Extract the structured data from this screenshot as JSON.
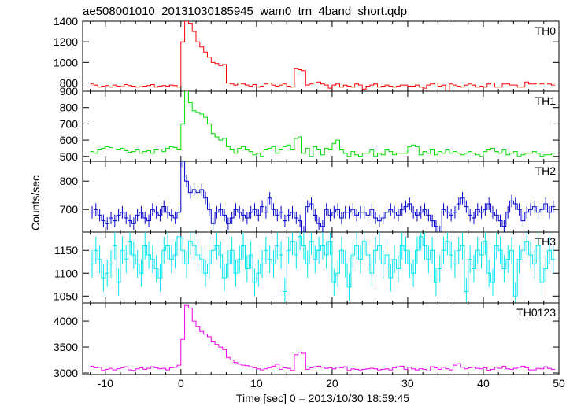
{
  "chart_data": {
    "type": "line",
    "title": "ae508001010_20131030185945_wam0_trn_4band_short.qdp",
    "xlabel": "Time [sec] 0 = 2013/10/30 18:59:45",
    "ylabel": "Counts/sec",
    "xlim": [
      -13,
      50
    ],
    "x_ticks": [
      -10,
      0,
      10,
      20,
      30,
      40,
      50
    ],
    "bin_width": 0.5,
    "x_start": -12.0,
    "series": [
      {
        "name": "TH0",
        "color": "#ff0000",
        "ylim": [
          720,
          1400
        ],
        "y_ticks": [
          800,
          1000,
          1200,
          1400
        ],
        "errorbars": false,
        "values": [
          790,
          780,
          760,
          770,
          775,
          760,
          780,
          770,
          765,
          785,
          775,
          770,
          760,
          765,
          770,
          775,
          785,
          760,
          770,
          775,
          770,
          780,
          775,
          760,
          1200,
          1400,
          1380,
          1300,
          1200,
          1150,
          1100,
          1050,
          1000,
          990,
          970,
          980,
          800,
          790,
          780,
          800,
          790,
          780,
          770,
          785,
          760,
          770,
          790,
          800,
          780,
          770,
          780,
          790,
          770,
          760,
          940,
          930,
          920,
          780,
          790,
          800,
          810,
          790,
          780,
          750,
          780,
          790,
          760,
          780,
          770,
          760,
          790,
          780,
          740,
          770,
          780,
          790,
          760,
          770,
          780,
          770,
          760,
          770,
          780,
          780,
          770,
          770,
          780,
          760,
          750,
          780,
          790,
          800,
          770,
          780,
          720,
          790,
          780,
          770,
          760,
          780,
          790,
          780,
          760,
          770,
          760,
          790,
          800,
          760,
          760,
          790,
          790,
          780,
          780,
          760,
          760,
          810,
          790,
          790,
          800,
          790,
          800,
          790,
          780
        ]
      },
      {
        "name": "TH1",
        "color": "#00dd00",
        "ylim": [
          470,
          900
        ],
        "y_ticks": [
          500,
          600,
          700,
          800,
          900
        ],
        "errorbars": false,
        "values": [
          530,
          520,
          540,
          550,
          560,
          555,
          545,
          540,
          550,
          535,
          525,
          530,
          540,
          520,
          530,
          535,
          520,
          540,
          545,
          530,
          550,
          560,
          555,
          540,
          700,
          900,
          830,
          780,
          770,
          760,
          740,
          700,
          640,
          620,
          600,
          610,
          560,
          540,
          520,
          550,
          560,
          540,
          530,
          510,
          520,
          500,
          540,
          550,
          560,
          520,
          540,
          560,
          570,
          540,
          610,
          620,
          520,
          550,
          500,
          560,
          540,
          510,
          550,
          540,
          580,
          600,
          540,
          520,
          500,
          530,
          510,
          500,
          520,
          520,
          540,
          500,
          520,
          510,
          540,
          530,
          510,
          520,
          520,
          520,
          560,
          570,
          560,
          510,
          530,
          520,
          540,
          510,
          530,
          520,
          540,
          520,
          530,
          520,
          510,
          520,
          530,
          520,
          510,
          500,
          530,
          540,
          550,
          530,
          520,
          540,
          510,
          520,
          530,
          500,
          510,
          520,
          520,
          530,
          520,
          500,
          510,
          510,
          520
        ]
      },
      {
        "name": "TH2",
        "color": "#0000cc",
        "ylim": [
          620,
          870
        ],
        "y_ticks": [
          700,
          800
        ],
        "errorbars": true,
        "err": 22,
        "values": [
          690,
          700,
          680,
          660,
          650,
          670,
          660,
          680,
          690,
          670,
          660,
          650,
          680,
          690,
          670,
          660,
          700,
          690,
          680,
          710,
          690,
          680,
          670,
          690,
          870,
          800,
          760,
          770,
          760,
          770,
          740,
          700,
          650,
          690,
          700,
          680,
          650,
          670,
          700,
          690,
          680,
          670,
          690,
          700,
          680,
          710,
          690,
          740,
          700,
          680,
          690,
          660,
          680,
          690,
          670,
          660,
          620,
          710,
          720,
          680,
          650,
          640,
          700,
          680,
          690,
          700,
          670,
          690,
          690,
          700,
          680,
          690,
          690,
          680,
          700,
          670,
          660,
          670,
          690,
          700,
          690,
          680,
          700,
          710,
          720,
          690,
          680,
          690,
          700,
          680,
          660,
          640,
          620,
          700,
          690,
          680,
          690,
          720,
          740,
          710,
          680,
          670,
          700,
          690,
          700,
          720,
          690,
          680,
          660,
          640,
          690,
          730,
          720,
          700,
          660,
          690,
          700,
          710,
          690,
          700,
          720,
          690,
          710
        ]
      },
      {
        "name": "TH3",
        "color": "#00e5ee",
        "ylim": [
          1035,
          1190
        ],
        "y_ticks": [
          1050,
          1100,
          1150
        ],
        "errorbars": true,
        "err": 30,
        "values": [
          1120,
          1150,
          1130,
          1090,
          1100,
          1120,
          1160,
          1080,
          1150,
          1130,
          1170,
          1140,
          1120,
          1100,
          1160,
          1140,
          1130,
          1110,
          1090,
          1150,
          1160,
          1130,
          1140,
          1180,
          1150,
          1120,
          1170,
          1160,
          1140,
          1130,
          1100,
          1120,
          1150,
          1160,
          1140,
          1090,
          1120,
          1150,
          1100,
          1130,
          1160,
          1110,
          1140,
          1080,
          1100,
          1120,
          1150,
          1130,
          1120,
          1160,
          1140,
          1060,
          1150,
          1170,
          1140,
          1180,
          1160,
          1120,
          1170,
          1130,
          1150,
          1160,
          1140,
          1170,
          1080,
          1100,
          1150,
          1120,
          1070,
          1140,
          1160,
          1130,
          1170,
          1140,
          1100,
          1150,
          1160,
          1120,
          1140,
          1090,
          1130,
          1110,
          1160,
          1150,
          1120,
          1100,
          1150,
          1180,
          1160,
          1130,
          1150,
          1080,
          1110,
          1150,
          1170,
          1140,
          1120,
          1150,
          1160,
          1060,
          1130,
          1110,
          1150,
          1140,
          1170,
          1100,
          1080,
          1160,
          1150,
          1110,
          1130,
          1150,
          1050,
          1130,
          1150,
          1170,
          1140,
          1120,
          1160,
          1080,
          1110,
          1150,
          1130
        ]
      },
      {
        "name": "TH0123",
        "color": "#ee00ee",
        "ylim": [
          2970,
          4350
        ],
        "y_ticks": [
          3000,
          3500,
          4000
        ],
        "errorbars": false,
        "values": [
          3130,
          3100,
          3110,
          3050,
          3070,
          3090,
          3060,
          3080,
          3100,
          3120,
          3060,
          3050,
          3080,
          3100,
          3070,
          3090,
          3120,
          3100,
          3080,
          3090,
          3060,
          3100,
          3110,
          3150,
          3650,
          4300,
          4250,
          4000,
          3900,
          3800,
          3750,
          3700,
          3600,
          3550,
          3500,
          3450,
          3300,
          3250,
          3200,
          3170,
          3150,
          3140,
          3120,
          3100,
          3080,
          3060,
          3080,
          3100,
          3130,
          3170,
          3070,
          3100,
          3090,
          3050,
          3350,
          3400,
          3380,
          3070,
          3100,
          3120,
          3130,
          3110,
          3090,
          3100,
          3080,
          3110,
          3100,
          3120,
          3050,
          3080,
          3070,
          3060,
          3070,
          3080,
          3090,
          3080,
          3060,
          3070,
          3080,
          3060,
          3100,
          3120,
          3130,
          3070,
          3110,
          3080,
          3060,
          3080,
          3070,
          3040,
          3120,
          3100,
          3070,
          3110,
          3080,
          3060,
          3150,
          3180,
          3110,
          3080,
          3100,
          3110,
          3090,
          3080,
          3100,
          3050,
          3070,
          3110,
          3090,
          3130,
          3080,
          3070,
          3090,
          3110,
          3130,
          3100,
          3060,
          3060,
          3090,
          3080,
          3120,
          3090,
          3070
        ]
      }
    ]
  }
}
